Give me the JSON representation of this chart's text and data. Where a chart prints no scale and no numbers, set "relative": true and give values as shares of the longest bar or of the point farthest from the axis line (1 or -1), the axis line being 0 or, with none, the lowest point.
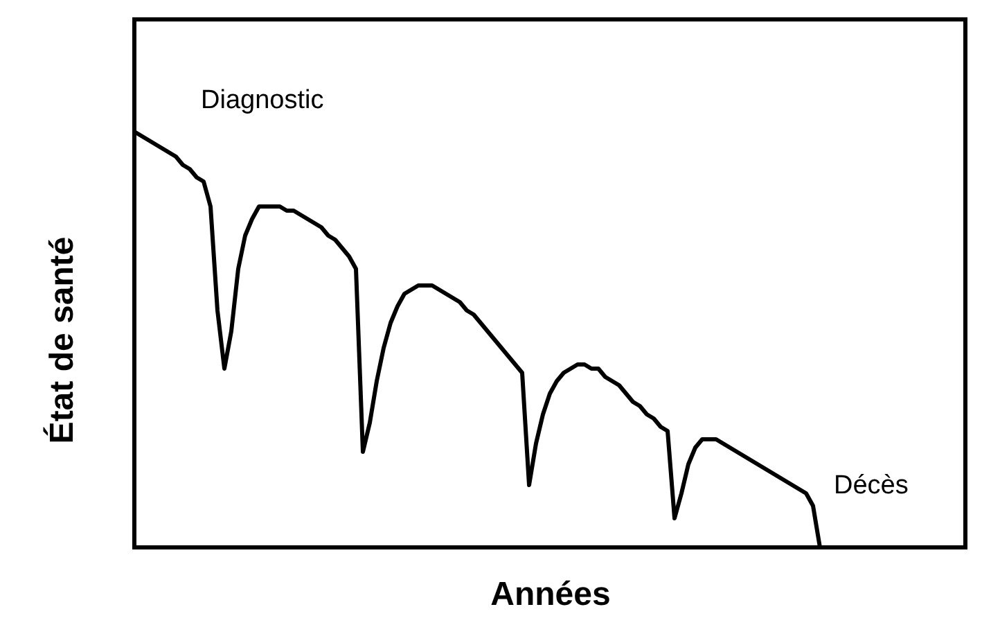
{
  "chart_data": {
    "type": "line",
    "relative": true,
    "xlabel": "Années",
    "ylabel": "État de santé",
    "categories": [
      null,
      null,
      null,
      null,
      null,
      null,
      null,
      null,
      null,
      null,
      null,
      null,
      null,
      null,
      null,
      null,
      null,
      null,
      null,
      null,
      null,
      null,
      null,
      null,
      null,
      null,
      null,
      null,
      null,
      null,
      null,
      null,
      null,
      null,
      null,
      null,
      null,
      null,
      null,
      null,
      null,
      null,
      null,
      null,
      null,
      null,
      null,
      null,
      null,
      null,
      null,
      null,
      null,
      null,
      null,
      null,
      null,
      null,
      null,
      null,
      null,
      null,
      null,
      null,
      null,
      null,
      null,
      null,
      null,
      null,
      null,
      null,
      null,
      null,
      null,
      null,
      null,
      null,
      null,
      null,
      null,
      null,
      null,
      null,
      null,
      null,
      null,
      null,
      null,
      null,
      null,
      null,
      null,
      null,
      null,
      null,
      null,
      null,
      null,
      null,
      null,
      null,
      null,
      null,
      null,
      null,
      null,
      null,
      null,
      null,
      null,
      null,
      null,
      null,
      null,
      null,
      null,
      null,
      null,
      null,
      null
    ],
    "series": [
      {
        "color": "#000000",
        "values": [
          1.0,
          0.99,
          0.98,
          0.97,
          0.96,
          0.95,
          0.94,
          0.92,
          0.91,
          0.89,
          0.88,
          0.82,
          0.57,
          0.43,
          0.52,
          0.67,
          0.75,
          0.79,
          0.82,
          0.82,
          0.82,
          0.82,
          0.81,
          0.81,
          0.8,
          0.79,
          0.78,
          0.77,
          0.75,
          0.74,
          0.72,
          0.7,
          0.67,
          0.23,
          0.3,
          0.4,
          0.48,
          0.54,
          0.58,
          0.61,
          0.62,
          0.63,
          0.63,
          0.63,
          0.62,
          0.61,
          0.6,
          0.59,
          0.57,
          0.56,
          0.54,
          0.52,
          0.5,
          0.48,
          0.46,
          0.44,
          0.42,
          0.15,
          0.25,
          0.32,
          0.37,
          0.4,
          0.42,
          0.43,
          0.44,
          0.44,
          0.43,
          0.43,
          0.41,
          0.4,
          0.39,
          0.37,
          0.35,
          0.34,
          0.32,
          0.31,
          0.29,
          0.28,
          0.07,
          0.13,
          0.2,
          0.24,
          0.26,
          0.26,
          0.26,
          0.25,
          0.24,
          0.23,
          0.22,
          0.21,
          0.2,
          0.19,
          0.18,
          0.17,
          0.16,
          0.15,
          0.14,
          0.13,
          0.1,
          0.0,
          null,
          null,
          null,
          null,
          null,
          null,
          null,
          null,
          null,
          null,
          null,
          null,
          null,
          null,
          null,
          null,
          null,
          null,
          null,
          null,
          null
        ]
      }
    ],
    "annotations": [
      "Diagnostic",
      "Décès"
    ]
  }
}
